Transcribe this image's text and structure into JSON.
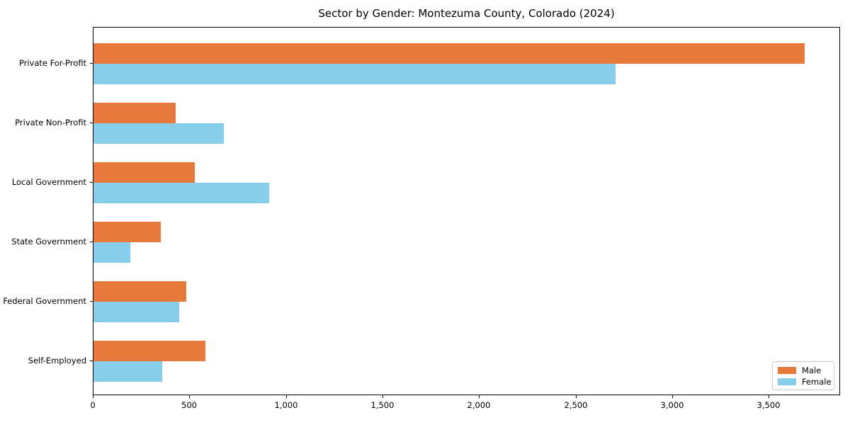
{
  "chart_data": {
    "type": "bar",
    "orientation": "horizontal",
    "title": "Sector by Gender: Montezuma County, Colorado (2024)",
    "categories": [
      "Private For-Profit",
      "Private Non-Profit",
      "Local Government",
      "State Government",
      "Federal Government",
      "Self-Employed"
    ],
    "series": [
      {
        "name": "Male",
        "color": "#e8793d",
        "values": [
          3682,
          427,
          526,
          350,
          479,
          579
        ]
      },
      {
        "name": "Female",
        "color": "#87ceeb",
        "values": [
          2703,
          674,
          910,
          190,
          443,
          357
        ]
      }
    ],
    "xlabel": "",
    "ylabel": "",
    "xlim": [
      0,
      3869
    ],
    "x_ticks": [
      0,
      500,
      1000,
      1500,
      2000,
      2500,
      3000,
      3500
    ],
    "x_tick_labels": [
      "0",
      "500",
      "1,000",
      "1,500",
      "2,000",
      "2,500",
      "3,000",
      "3,500"
    ],
    "grid": false,
    "legend": {
      "position": "lower right",
      "entries": [
        "Male",
        "Female"
      ]
    }
  }
}
